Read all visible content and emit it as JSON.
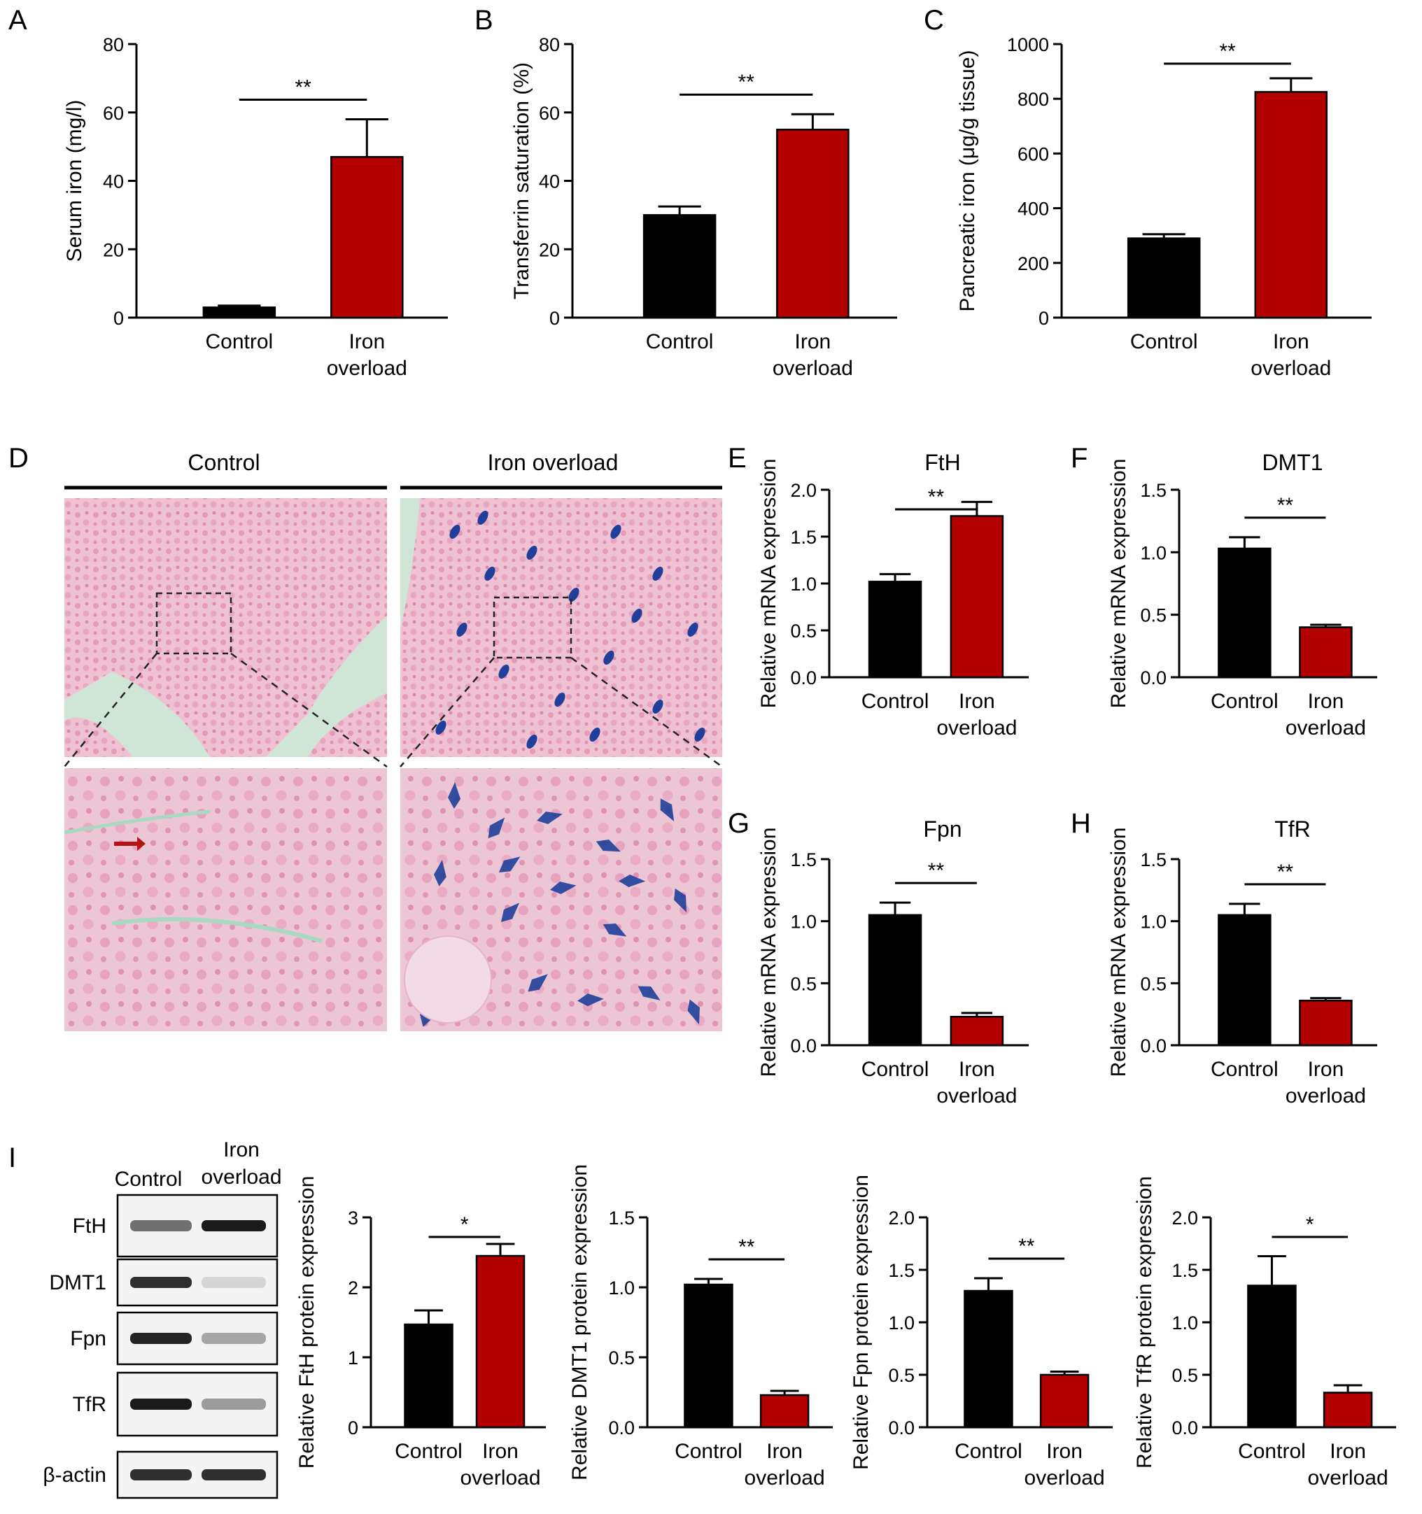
{
  "panel_letters": [
    "A",
    "B",
    "C",
    "D",
    "E",
    "F",
    "G",
    "H",
    "I"
  ],
  "colors": {
    "control": "#000000",
    "iron_overload": "#b30000",
    "stain_pink": "#e8a7bf",
    "iron_blue": "#1f3f9a",
    "tissue_bg": "#cfe6d6"
  },
  "histology": {
    "column_headers": [
      "Control",
      "Iron overload"
    ],
    "arrow_color": "#b51414"
  },
  "western_blot": {
    "lane_labels": [
      "Control",
      "Iron",
      "overload"
    ],
    "rows": [
      {
        "label": "FtH",
        "control": 0.55,
        "iron": 0.95
      },
      {
        "label": "DMT1",
        "control": 0.85,
        "iron": 0.08
      },
      {
        "label": "Fpn",
        "control": 0.9,
        "iron": 0.3
      },
      {
        "label": "TfR",
        "control": 0.95,
        "iron": 0.35
      },
      {
        "label": "β-actin",
        "control": 0.85,
        "iron": 0.85
      }
    ]
  },
  "chart_data": [
    {
      "id": "A",
      "type": "bar",
      "categories": [
        "Control",
        "Iron overload"
      ],
      "values": [
        3,
        47
      ],
      "errors": [
        0.5,
        11
      ],
      "ylabel": "Serum iron (mg/l)",
      "ylim": [
        0,
        80
      ],
      "yticks": [
        "0",
        "20",
        "40",
        "60",
        "80"
      ],
      "significance": "**"
    },
    {
      "id": "B",
      "type": "bar",
      "categories": [
        "Control",
        "Iron overload"
      ],
      "values": [
        30,
        55
      ],
      "errors": [
        2.5,
        4.5
      ],
      "ylabel": "Transferrin saturation (%)",
      "ylim": [
        0,
        80
      ],
      "yticks": [
        "0",
        "20",
        "40",
        "60",
        "80"
      ],
      "significance": "**"
    },
    {
      "id": "C",
      "type": "bar",
      "categories": [
        "Control",
        "Iron overload"
      ],
      "values": [
        290,
        825
      ],
      "errors": [
        15,
        50
      ],
      "ylabel": "Pancreatic iron (μg/g tissue)",
      "ylim": [
        0,
        1000
      ],
      "yticks": [
        "0",
        "200",
        "400",
        "600",
        "800",
        "1000"
      ],
      "significance": "**"
    },
    {
      "id": "E",
      "title": "FtH",
      "type": "bar",
      "categories": [
        "Control",
        "Iron overload"
      ],
      "values": [
        1.02,
        1.72
      ],
      "errors": [
        0.08,
        0.15
      ],
      "ylabel": "Relative mRNA expression",
      "ylim": [
        0,
        2.0
      ],
      "yticks": [
        "0.0",
        "0.5",
        "1.0",
        "1.5",
        "2.0"
      ],
      "significance": "**"
    },
    {
      "id": "F",
      "title": "DMT1",
      "type": "bar",
      "categories": [
        "Control",
        "Iron overload"
      ],
      "values": [
        1.03,
        0.4
      ],
      "errors": [
        0.09,
        0.02
      ],
      "ylabel": "Relative mRNA expression",
      "ylim": [
        0,
        1.5
      ],
      "yticks": [
        "0.0",
        "0.5",
        "1.0",
        "1.5"
      ],
      "significance": "**"
    },
    {
      "id": "G",
      "title": "Fpn",
      "type": "bar",
      "categories": [
        "Control",
        "Iron overload"
      ],
      "values": [
        1.05,
        0.23
      ],
      "errors": [
        0.1,
        0.03
      ],
      "ylabel": "Relative mRNA expression",
      "ylim": [
        0,
        1.5
      ],
      "yticks": [
        "0.0",
        "0.5",
        "1.0",
        "1.5"
      ],
      "significance": "**"
    },
    {
      "id": "H",
      "title": "TfR",
      "type": "bar",
      "categories": [
        "Control",
        "Iron overload"
      ],
      "values": [
        1.05,
        0.36
      ],
      "errors": [
        0.09,
        0.02
      ],
      "ylabel": "Relative mRNA expression",
      "ylim": [
        0,
        1.5
      ],
      "yticks": [
        "0.0",
        "0.5",
        "1.0",
        "1.5"
      ],
      "significance": "**"
    },
    {
      "id": "I1",
      "type": "bar",
      "categories": [
        "Control",
        "Iron overload"
      ],
      "values": [
        1.47,
        2.45
      ],
      "errors": [
        0.2,
        0.17
      ],
      "ylabel": "Relative FtH protein expression",
      "ylim": [
        0,
        3
      ],
      "yticks": [
        "0",
        "1",
        "2",
        "3"
      ],
      "significance": "*"
    },
    {
      "id": "I2",
      "type": "bar",
      "categories": [
        "Control",
        "Iron overload"
      ],
      "values": [
        1.02,
        0.23
      ],
      "errors": [
        0.04,
        0.03
      ],
      "ylabel": "Relative DMT1 protein expression",
      "ylim": [
        0,
        1.5
      ],
      "yticks": [
        "0.0",
        "0.5",
        "1.0",
        "1.5"
      ],
      "significance": "**"
    },
    {
      "id": "I3",
      "type": "bar",
      "categories": [
        "Control",
        "Iron overload"
      ],
      "values": [
        1.3,
        0.5
      ],
      "errors": [
        0.12,
        0.03
      ],
      "ylabel": "Relative Fpn protein expression",
      "ylim": [
        0,
        2.0
      ],
      "yticks": [
        "0.0",
        "0.5",
        "1.0",
        "1.5",
        "2.0"
      ],
      "significance": "**"
    },
    {
      "id": "I4",
      "type": "bar",
      "categories": [
        "Control",
        "Iron overload"
      ],
      "values": [
        1.35,
        0.33
      ],
      "errors": [
        0.28,
        0.07
      ],
      "ylabel": "Relative TfR protein expression",
      "ylim": [
        0,
        2.0
      ],
      "yticks": [
        "0.0",
        "0.5",
        "1.0",
        "1.5",
        "2.0"
      ],
      "significance": "*"
    }
  ]
}
